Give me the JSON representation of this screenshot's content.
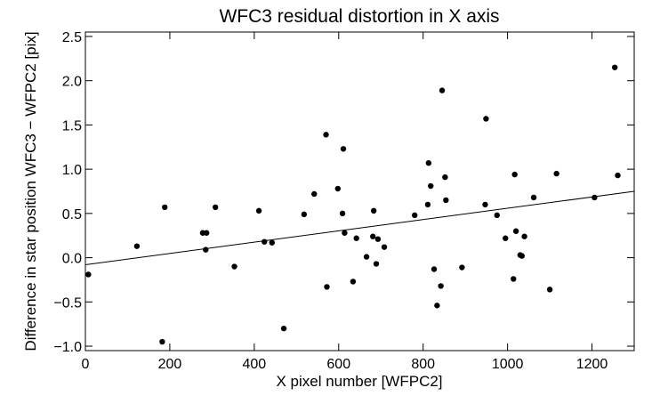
{
  "chart_data": {
    "type": "scatter",
    "title": "WFC3 residual distortion in X axis",
    "xlabel": "X pixel number [WFPC2]",
    "ylabel": "Difference in star position WFC3 − WFPC2 [pix]",
    "xlim": [
      0,
      1300
    ],
    "ylim": [
      -1.05,
      2.55
    ],
    "xticks": [
      0,
      200,
      400,
      600,
      800,
      1000,
      1200
    ],
    "xtick_labels": [
      "0",
      "200",
      "400",
      "600",
      "800",
      "1000",
      "1200"
    ],
    "yticks": [
      -1.0,
      -0.5,
      0.0,
      0.5,
      1.0,
      1.5,
      2.0,
      2.5
    ],
    "ytick_labels": [
      "−1.0",
      "−0.5",
      "0.0",
      "0.5",
      "1.0",
      "1.5",
      "2.0",
      "2.5"
    ],
    "grid": false,
    "series": [
      {
        "name": "residuals",
        "points": [
          [
            7,
            -0.19
          ],
          [
            122,
            0.13
          ],
          [
            182,
            -0.95
          ],
          [
            188,
            0.57
          ],
          [
            278,
            0.28
          ],
          [
            285,
            0.09
          ],
          [
            287,
            0.28
          ],
          [
            308,
            0.57
          ],
          [
            353,
            -0.1
          ],
          [
            411,
            0.53
          ],
          [
            424,
            0.18
          ],
          [
            442,
            0.17
          ],
          [
            470,
            -0.8
          ],
          [
            518,
            0.49
          ],
          [
            542,
            0.72
          ],
          [
            570,
            1.39
          ],
          [
            572,
            -0.33
          ],
          [
            598,
            0.78
          ],
          [
            609,
            0.5
          ],
          [
            611,
            1.23
          ],
          [
            614,
            0.28
          ],
          [
            634,
            -0.27
          ],
          [
            642,
            0.22
          ],
          [
            666,
            0.01
          ],
          [
            681,
            0.24
          ],
          [
            683,
            0.53
          ],
          [
            689,
            -0.07
          ],
          [
            693,
            0.21
          ],
          [
            708,
            0.12
          ],
          [
            780,
            0.48
          ],
          [
            811,
            0.6
          ],
          [
            813,
            1.07
          ],
          [
            818,
            0.81
          ],
          [
            826,
            -0.13
          ],
          [
            833,
            -0.54
          ],
          [
            842,
            -0.32
          ],
          [
            845,
            1.89
          ],
          [
            852,
            0.91
          ],
          [
            854,
            0.65
          ],
          [
            892,
            -0.11
          ],
          [
            947,
            0.6
          ],
          [
            949,
            1.57
          ],
          [
            975,
            0.48
          ],
          [
            995,
            0.22
          ],
          [
            1014,
            -0.24
          ],
          [
            1017,
            0.94
          ],
          [
            1020,
            0.3
          ],
          [
            1030,
            0.03
          ],
          [
            1034,
            0.02
          ],
          [
            1040,
            0.24
          ],
          [
            1062,
            0.68
          ],
          [
            1100,
            -0.36
          ],
          [
            1116,
            0.95
          ],
          [
            1206,
            0.68
          ],
          [
            1254,
            2.15
          ],
          [
            1261,
            0.93
          ]
        ]
      },
      {
        "name": "linear fit",
        "line": [
          [
            0,
            -0.08
          ],
          [
            1300,
            0.75
          ]
        ]
      }
    ]
  }
}
